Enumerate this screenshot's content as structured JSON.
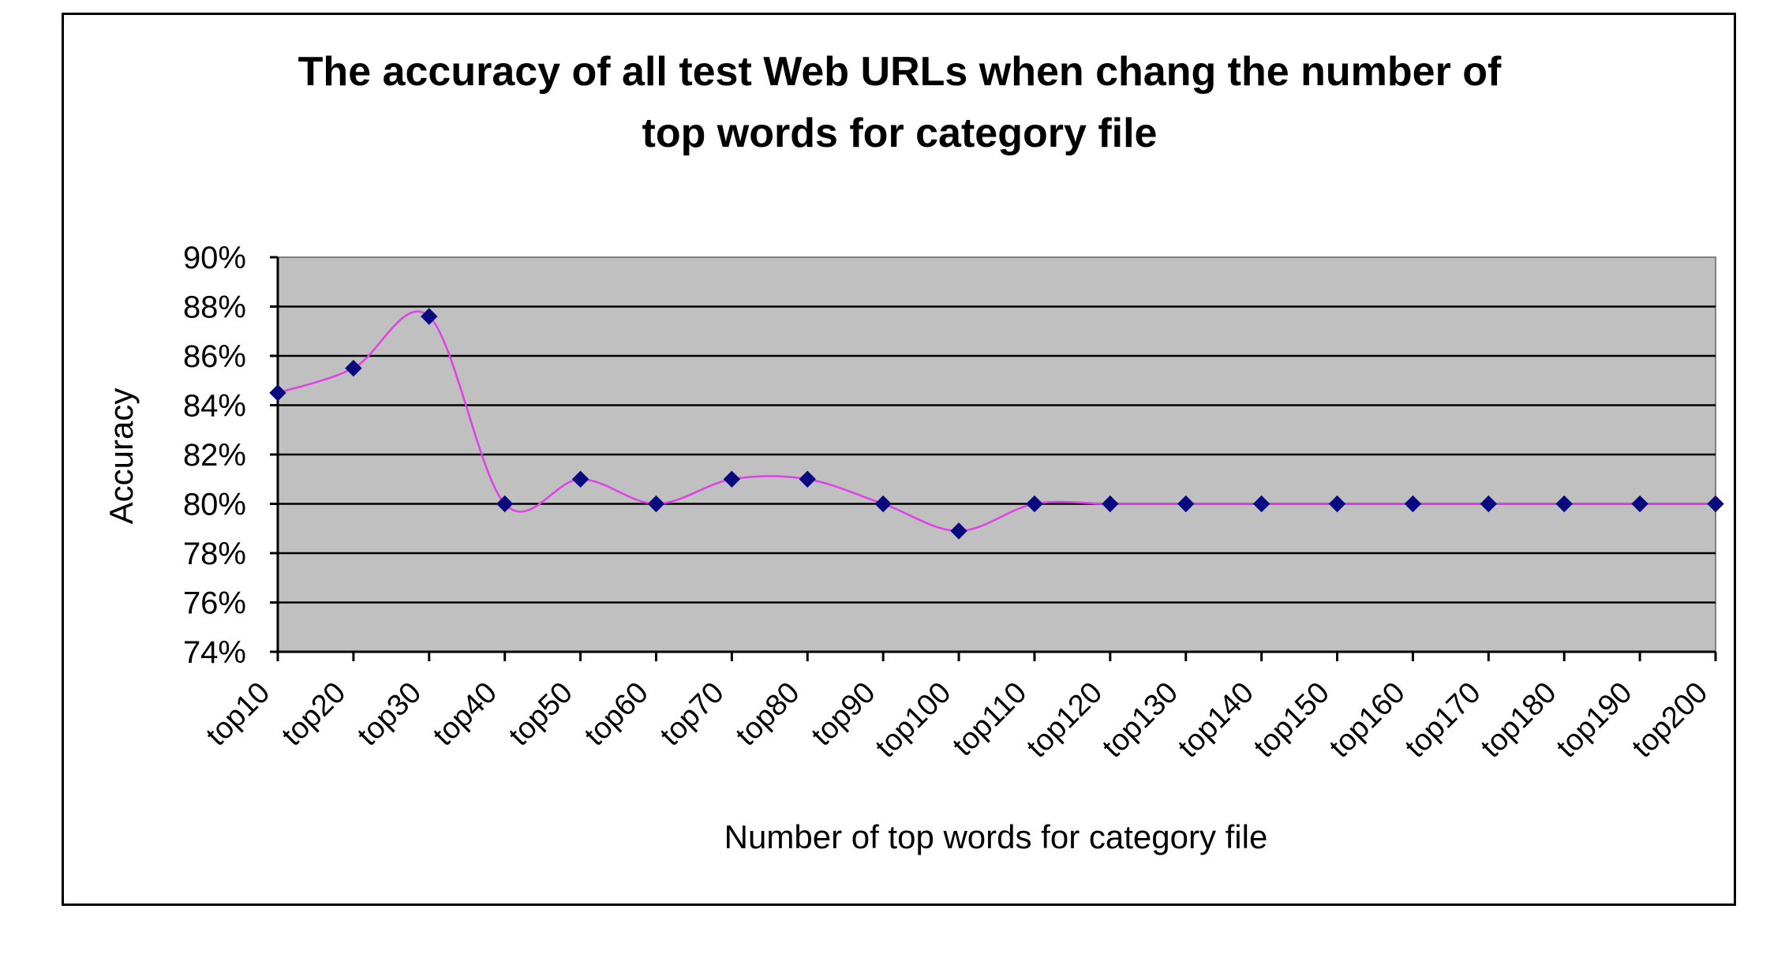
{
  "chart_data": {
    "type": "line",
    "title": "The accuracy of all test Web URLs when chang the number of top words for category file",
    "title_lines": [
      "The accuracy of all test Web URLs when chang the number of",
      "top words for category file"
    ],
    "xlabel": "Number of top words for category file",
    "ylabel": "Accuracy",
    "categories": [
      "top10",
      "top20",
      "top30",
      "top40",
      "top50",
      "top60",
      "top70",
      "top80",
      "top90",
      "top100",
      "top110",
      "top120",
      "top130",
      "top140",
      "top150",
      "top160",
      "top170",
      "top180",
      "top190",
      "top200"
    ],
    "series": [
      {
        "values": [
          84.5,
          85.5,
          87.6,
          80.0,
          81.0,
          80.0,
          81.0,
          81.0,
          80.0,
          78.9,
          80.0,
          80.0,
          80.0,
          80.0,
          80.0,
          80.0,
          80.0,
          80.0,
          80.0,
          80.0
        ]
      }
    ],
    "ylim": [
      74,
      90
    ],
    "yticks": [
      "90%",
      "88%",
      "86%",
      "84%",
      "82%",
      "80%",
      "78%",
      "76%",
      "74%"
    ],
    "grid": true,
    "smooth": true,
    "plot_background": "#c0c0c0",
    "line_color": "#e040e8",
    "marker_color": "#0a0a80",
    "legend": "none"
  }
}
